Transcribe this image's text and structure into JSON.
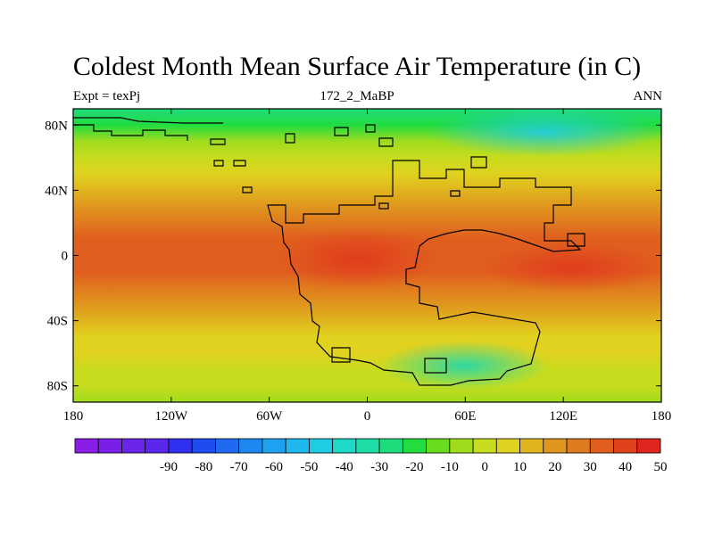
{
  "title": "Coldest Month Mean Surface Air Temperature (in C)",
  "subtitle_left": "Expt = texPj",
  "subtitle_center": "172_2_MaBP",
  "subtitle_right": "ANN",
  "map": {
    "projection": "cylindrical equidistant",
    "lon_range": [
      -180,
      180
    ],
    "lat_range": [
      -90,
      90
    ],
    "lon_ticks": [
      {
        "value": -180,
        "label": "180"
      },
      {
        "value": -120,
        "label": "120W"
      },
      {
        "value": -60,
        "label": "60W"
      },
      {
        "value": 0,
        "label": "0"
      },
      {
        "value": 60,
        "label": "60E"
      },
      {
        "value": 120,
        "label": "120E"
      },
      {
        "value": 180,
        "label": "180"
      }
    ],
    "lat_ticks": [
      {
        "value": 80,
        "label": "80N"
      },
      {
        "value": 40,
        "label": "40N"
      },
      {
        "value": 0,
        "label": "0"
      },
      {
        "value": -40,
        "label": "40S"
      },
      {
        "value": -80,
        "label": "80S"
      }
    ],
    "zonal_temperature_profile": [
      {
        "lat": 90,
        "value": -25
      },
      {
        "lat": 80,
        "value": -15
      },
      {
        "lat": 70,
        "value": -5
      },
      {
        "lat": 60,
        "value": 5
      },
      {
        "lat": 50,
        "value": 12
      },
      {
        "lat": 40,
        "value": 18
      },
      {
        "lat": 30,
        "value": 25
      },
      {
        "lat": 20,
        "value": 30
      },
      {
        "lat": 10,
        "value": 34
      },
      {
        "lat": 0,
        "value": 36
      },
      {
        "lat": -10,
        "value": 34
      },
      {
        "lat": -20,
        "value": 30
      },
      {
        "lat": -30,
        "value": 25
      },
      {
        "lat": -40,
        "value": 18
      },
      {
        "lat": -50,
        "value": 12
      },
      {
        "lat": -60,
        "value": 8
      },
      {
        "lat": -70,
        "value": 5
      },
      {
        "lat": -80,
        "value": 3
      },
      {
        "lat": -90,
        "value": 0
      }
    ]
  },
  "colorbar": {
    "colors": [
      "#8a1ee6",
      "#7a1fe8",
      "#6a24ea",
      "#5a28ec",
      "#3030f0",
      "#1e4cf0",
      "#1e6af0",
      "#1e88f0",
      "#1ea2f0",
      "#1eb8ee",
      "#1ecce4",
      "#1ed8c8",
      "#1edca6",
      "#1edc7c",
      "#22dc40",
      "#6adc1e",
      "#a0dc1e",
      "#c8dc1e",
      "#e0d21e",
      "#e0b41e",
      "#e0961e",
      "#e07a1e",
      "#e05e1e",
      "#e0421e",
      "#e0261e"
    ],
    "labels": [
      "-90",
      "-80",
      "-70",
      "-60",
      "-50",
      "-40",
      "-30",
      "-20",
      "-10",
      "0",
      "10",
      "20",
      "30",
      "40",
      "50"
    ]
  }
}
